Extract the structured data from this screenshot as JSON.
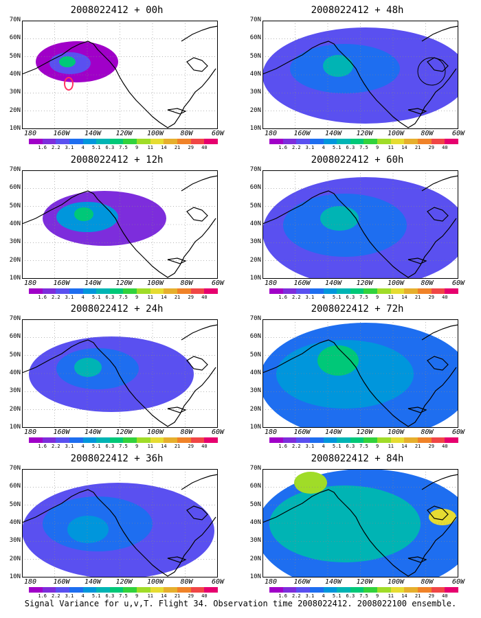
{
  "panels": [
    {
      "title": "2008022412 + 00h"
    },
    {
      "title": "2008022412 + 48h"
    },
    {
      "title": "2008022412 + 12h"
    },
    {
      "title": "2008022412 + 60h"
    },
    {
      "title": "2008022412 + 24h"
    },
    {
      "title": "2008022412 + 72h"
    },
    {
      "title": "2008022412 + 36h"
    },
    {
      "title": "2008022412 + 84h"
    }
  ],
  "lat_labels": [
    "70N",
    "60N",
    "50N",
    "40N",
    "30N",
    "20N",
    "10N"
  ],
  "lon_labels": [
    "180",
    "160W",
    "140W",
    "120W",
    "100W",
    "80W",
    "60W"
  ],
  "colorbar": {
    "labels": [
      "1.6",
      "2.2",
      "3.1",
      "4",
      "5.1",
      "6.3",
      "7.5",
      "9",
      "11",
      "14",
      "21",
      "29",
      "40"
    ],
    "colors": [
      "#a000c8",
      "#7d2ddc",
      "#5a50f0",
      "#1e6ef0",
      "#0096dc",
      "#00b4b4",
      "#00c878",
      "#32d23c",
      "#a0dc28",
      "#e6dc32",
      "#e6af2d",
      "#f08228",
      "#f04646",
      "#e6006e"
    ]
  },
  "footer": "Signal Variance for u,v,T. Flight 34. Observation time 2008022412. 2008022100 ensemble."
}
